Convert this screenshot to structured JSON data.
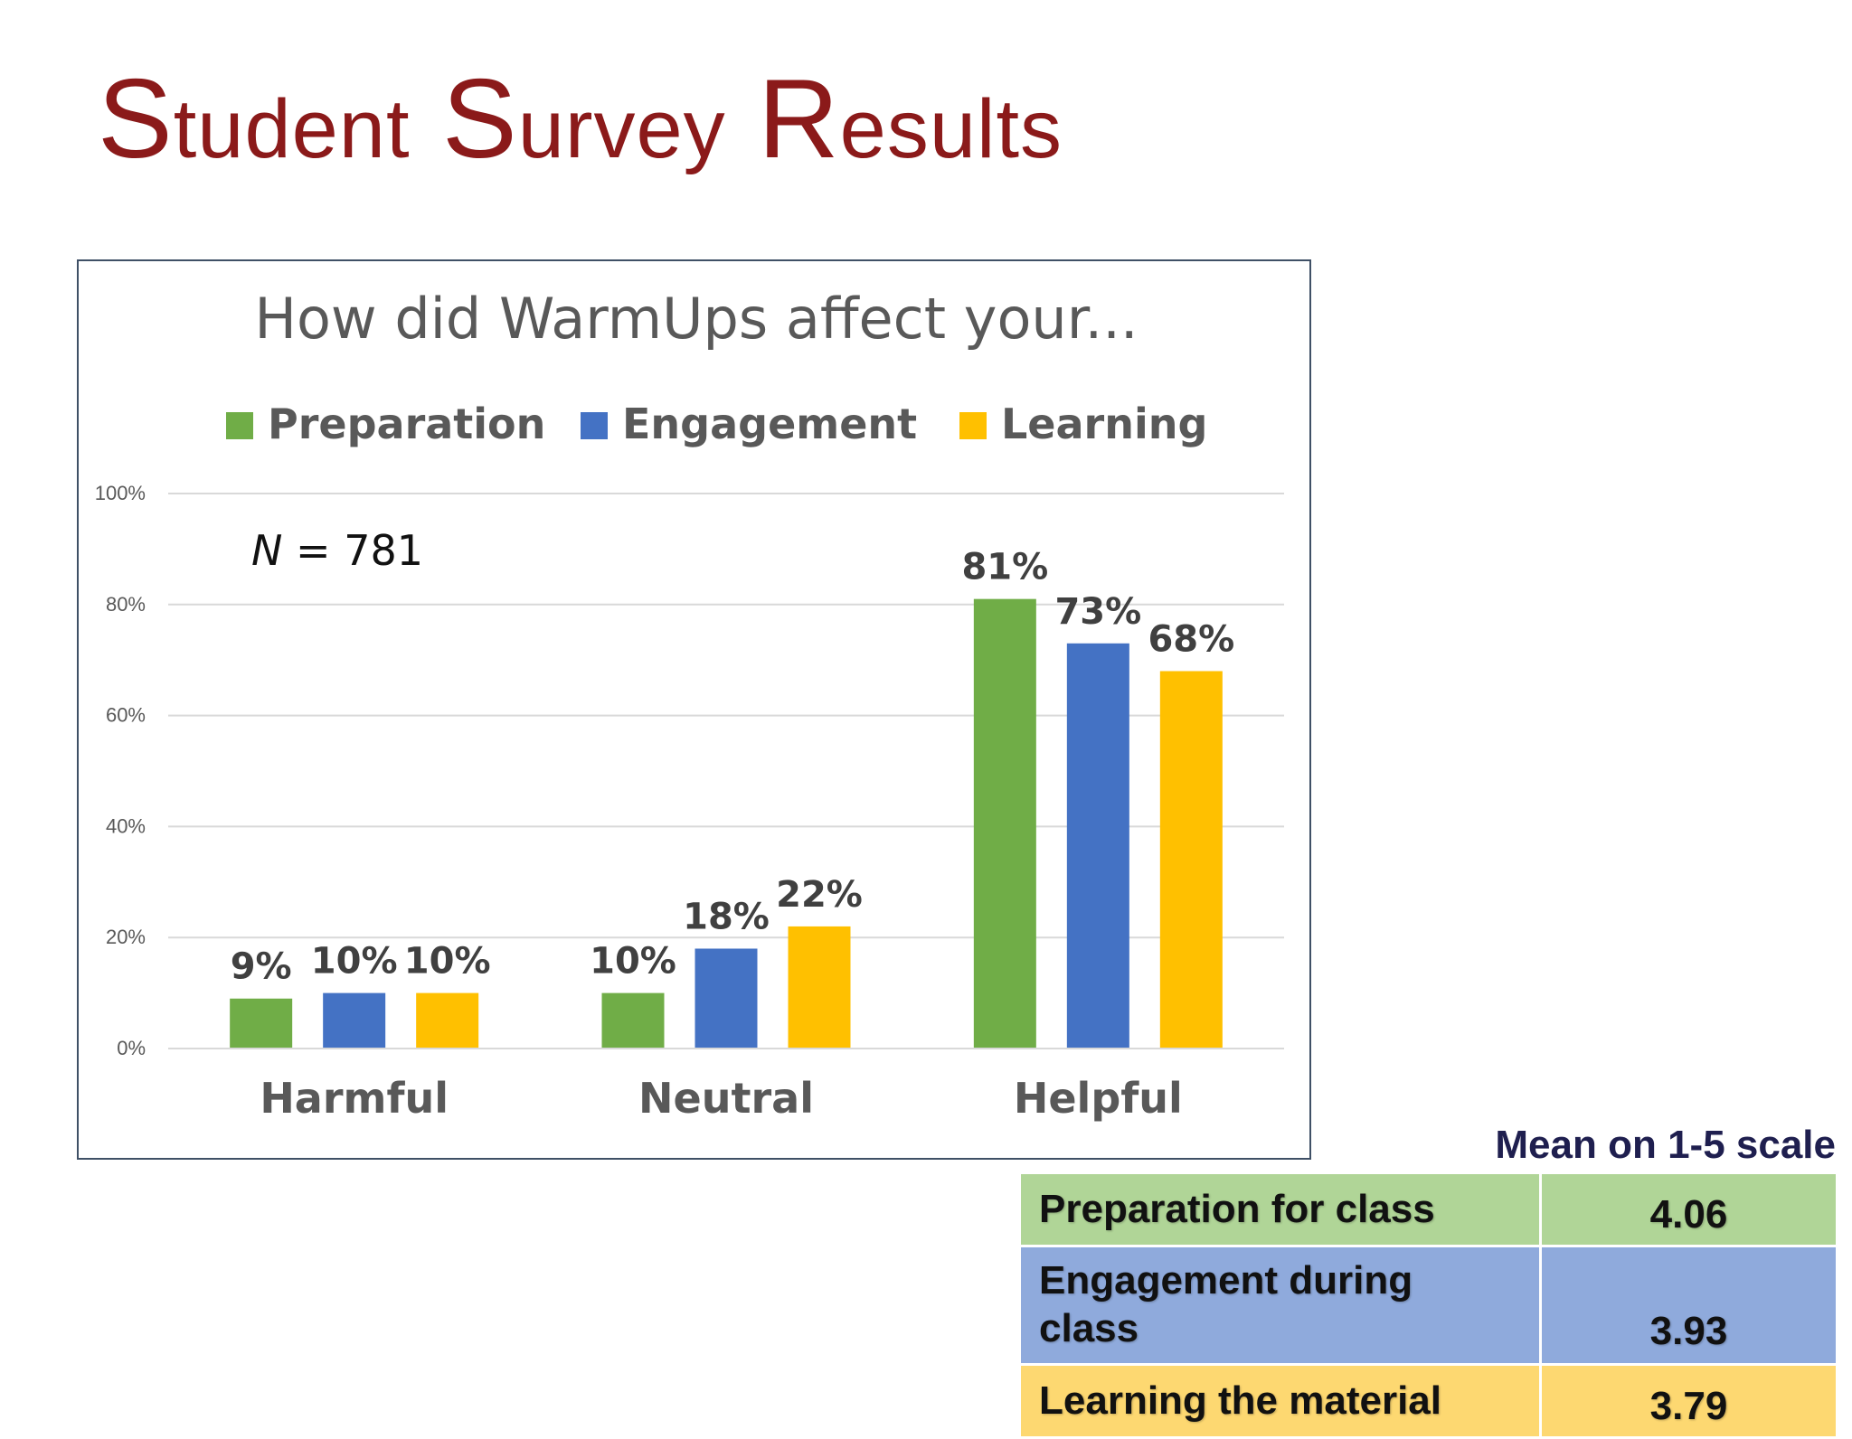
{
  "slide": {
    "title_parts": [
      {
        "cap": "S",
        "rest": "tudent"
      },
      {
        "cap": "S",
        "rest": "urvey"
      },
      {
        "cap": "R",
        "rest": "esults"
      }
    ]
  },
  "colors": {
    "title": "#8b1a1a",
    "preparation": "#70ad47",
    "engagement": "#4472c4",
    "learning": "#ffc000"
  },
  "chart_data": {
    "type": "bar",
    "title": "How did WarmUps affect your...",
    "categories": [
      "Harmful",
      "Neutral",
      "Helpful"
    ],
    "series": [
      {
        "name": "Preparation",
        "color": "#70ad47",
        "values": [
          9,
          10,
          81
        ],
        "labels": [
          "9%",
          "10%",
          "81%"
        ]
      },
      {
        "name": "Engagement",
        "color": "#4472c4",
        "values": [
          10,
          18,
          73
        ],
        "labels": [
          "10%",
          "18%",
          "73%"
        ]
      },
      {
        "name": "Learning",
        "color": "#ffc000",
        "values": [
          10,
          22,
          68
        ],
        "labels": [
          "10%",
          "22%",
          "68%"
        ]
      }
    ],
    "ylim": [
      0,
      100
    ],
    "yticks": [
      "0%",
      "20%",
      "40%",
      "60%",
      "80%",
      "100%"
    ],
    "grid": true,
    "legend": "top",
    "annotation": {
      "italic": "N",
      "rest": " = 781"
    },
    "xlabel": "",
    "ylabel": ""
  },
  "mean_table": {
    "header": "Mean on 1-5 scale",
    "rows": [
      {
        "label": "Preparation for class",
        "value": "4.06"
      },
      {
        "label": "Engagement during class",
        "value": "3.93"
      },
      {
        "label": "Learning the material",
        "value": "3.79"
      }
    ]
  }
}
